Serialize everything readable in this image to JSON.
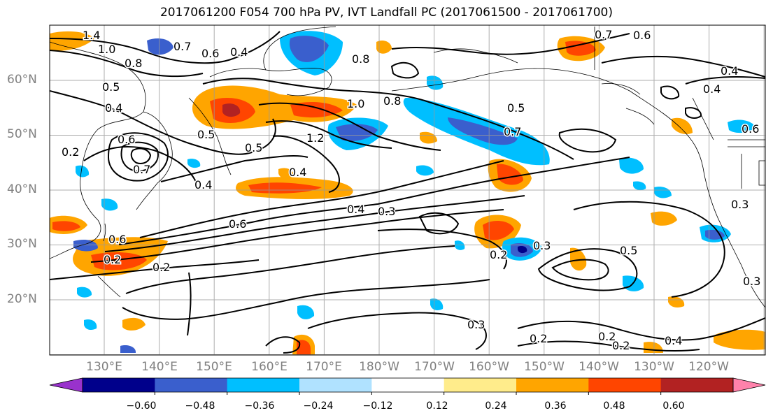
{
  "title": "2017061200 F054 700 hPa PV, IVT Landfall PC (2017061500 - 2017061700)",
  "lat_labels": [
    "60°N",
    "50°N",
    "40°N",
    "30°N",
    "20°N"
  ],
  "lon_labels": [
    "130°E",
    "140°E",
    "150°E",
    "160°E",
    "170°E",
    "180°W",
    "170°W",
    "160°W",
    "150°W",
    "140°W",
    "130°W",
    "120°W"
  ],
  "contour_labels": [
    "1.4",
    "1.0",
    "0.7",
    "0.6",
    "0.8",
    "0.4",
    "0.8",
    "0.5",
    "0.4",
    "0.6",
    "0.7",
    "0.2",
    "0.5",
    "0.5",
    "1.0",
    "0.8",
    "1.2",
    "0.7",
    "0.5",
    "0.4",
    "0.4",
    "0.4",
    "0.3",
    "0.6",
    "0.6",
    "0.2",
    "0.2",
    "0.2",
    "0.3",
    "0.5",
    "0.3",
    "0.3",
    "0.2",
    "0.2",
    "0.2",
    "0.4",
    "0.6",
    "0.4",
    "0.7",
    "0.6",
    "0.4",
    "0.3"
  ],
  "colorbar": {
    "ticks": [
      "−0.60",
      "−0.48",
      "−0.36",
      "−0.24",
      "−0.12",
      "0.12",
      "0.24",
      "0.36",
      "0.48",
      "0.60"
    ],
    "colors": [
      "#9932cc",
      "#00008b",
      "#3a5fcd",
      "#00bfff",
      "#b0e2ff",
      "#ffffff",
      "#ffec8b",
      "#ffa500",
      "#ff4500",
      "#b22222",
      "#ff82ab"
    ]
  },
  "colors": {
    "neg_light": "#00bfff",
    "neg_mid": "#3a5fcd",
    "neg_dark": "#00008b",
    "pos_light": "#ffa500",
    "pos_mid": "#ff4500",
    "pos_dark": "#b22222",
    "contour": "#000000",
    "coast": "#000000",
    "grid": "#999999"
  }
}
